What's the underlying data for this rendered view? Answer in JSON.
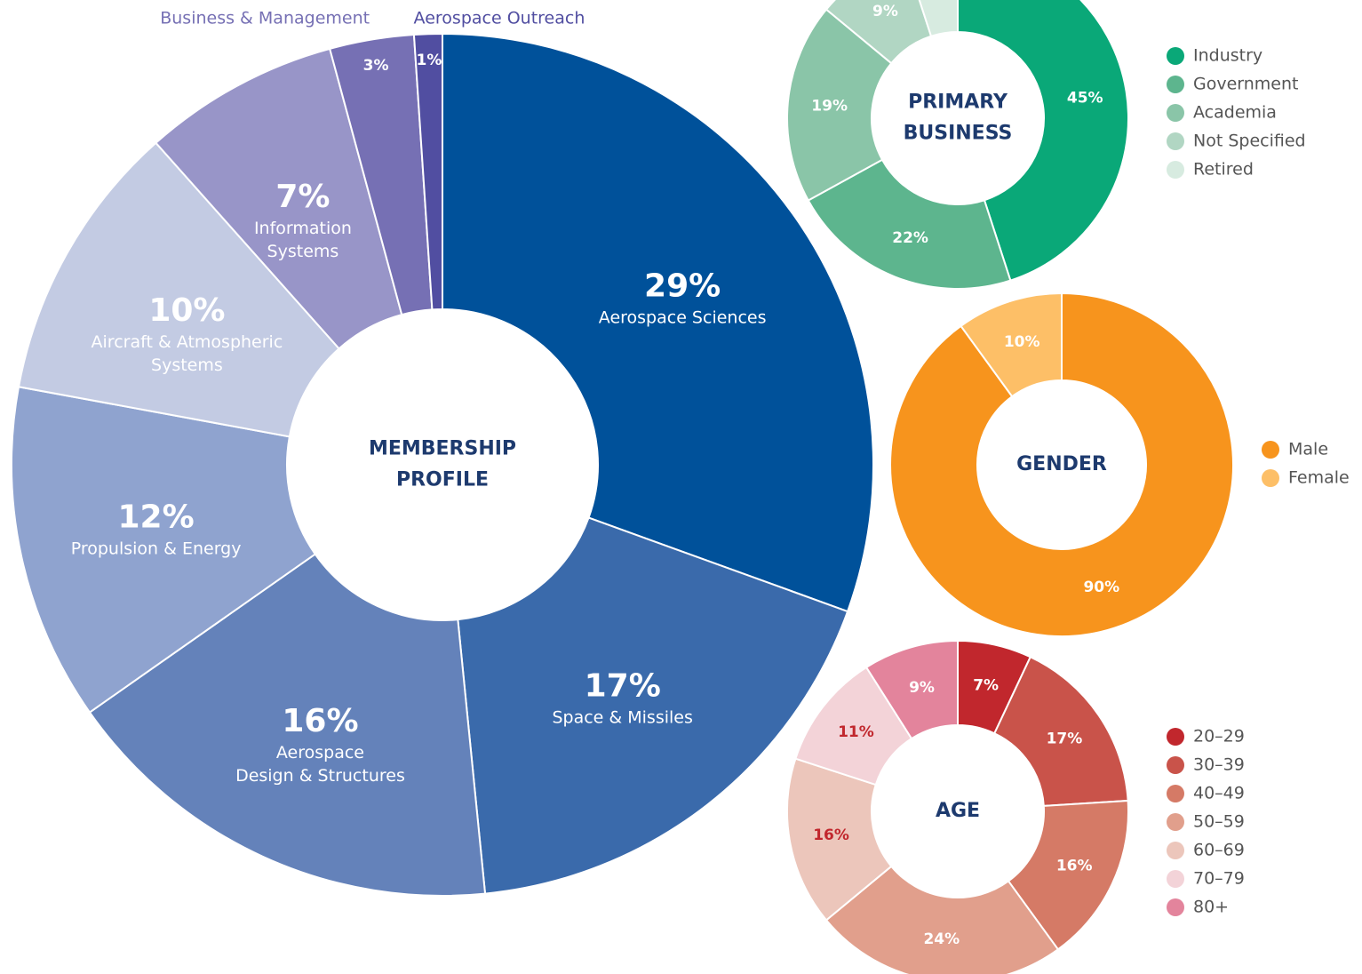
{
  "chart_data": [
    {
      "type": "donut",
      "title": "MEMBERSHIP PROFILE",
      "categories": [
        "Aerospace Sciences",
        "Space & Missiles",
        "Aerospace\nDesign & Structures",
        "Propulsion & Energy",
        "Aircraft & Atmospheric\nSystems",
        "Information\nSystems",
        "Business & Management",
        "Aerospace Outreach"
      ],
      "values": [
        29,
        17,
        16,
        12,
        10,
        7,
        3,
        1
      ],
      "value_labels": [
        "29%",
        "17%",
        "16%",
        "12%",
        "10%",
        "7%",
        "3%",
        "1%"
      ],
      "colors": [
        "#00519a",
        "#3a6aab",
        "#6482ba",
        "#8fa3cf",
        "#c3cbe3",
        "#9895c8",
        "#7670b4",
        "#514ea1"
      ]
    },
    {
      "type": "donut",
      "title": "PRIMARY BUSINESS",
      "categories": [
        "Industry",
        "Government",
        "Academia",
        "Not Specified",
        "Retired"
      ],
      "values": [
        45,
        22,
        19,
        9,
        5
      ],
      "value_labels": [
        "45%",
        "22%",
        "19%",
        "9%",
        null
      ],
      "colors": [
        "#0aa878",
        "#5db58e",
        "#8ac5a8",
        "#b1d6c3",
        "#d7ebe0"
      ],
      "legend": "right"
    },
    {
      "type": "donut",
      "title": "GENDER",
      "categories": [
        "Male",
        "Female"
      ],
      "values": [
        90,
        10
      ],
      "value_labels": [
        "90%",
        "10%"
      ],
      "colors": [
        "#f7941d",
        "#fdbf67"
      ],
      "legend": "right"
    },
    {
      "type": "donut",
      "title": "AGE",
      "categories": [
        "20–29",
        "30–39",
        "40–49",
        "50–59",
        "60–69",
        "70–79",
        "80+"
      ],
      "values": [
        7,
        17,
        16,
        24,
        16,
        11,
        9
      ],
      "value_labels": [
        "7%",
        "17%",
        "16%",
        "24%",
        "16%",
        "11%",
        "9%"
      ],
      "colors": [
        "#c1272d",
        "#c9534a",
        "#d57a66",
        "#e19f8c",
        "#ecc6bb",
        "#f3d3d8",
        "#e3849c"
      ],
      "label_colors": [
        "#ffffff",
        "#ffffff",
        "#ffffff",
        "#ffffff",
        "#c1272d",
        "#c1272d",
        "#ffffff"
      ],
      "legend": "right"
    }
  ]
}
